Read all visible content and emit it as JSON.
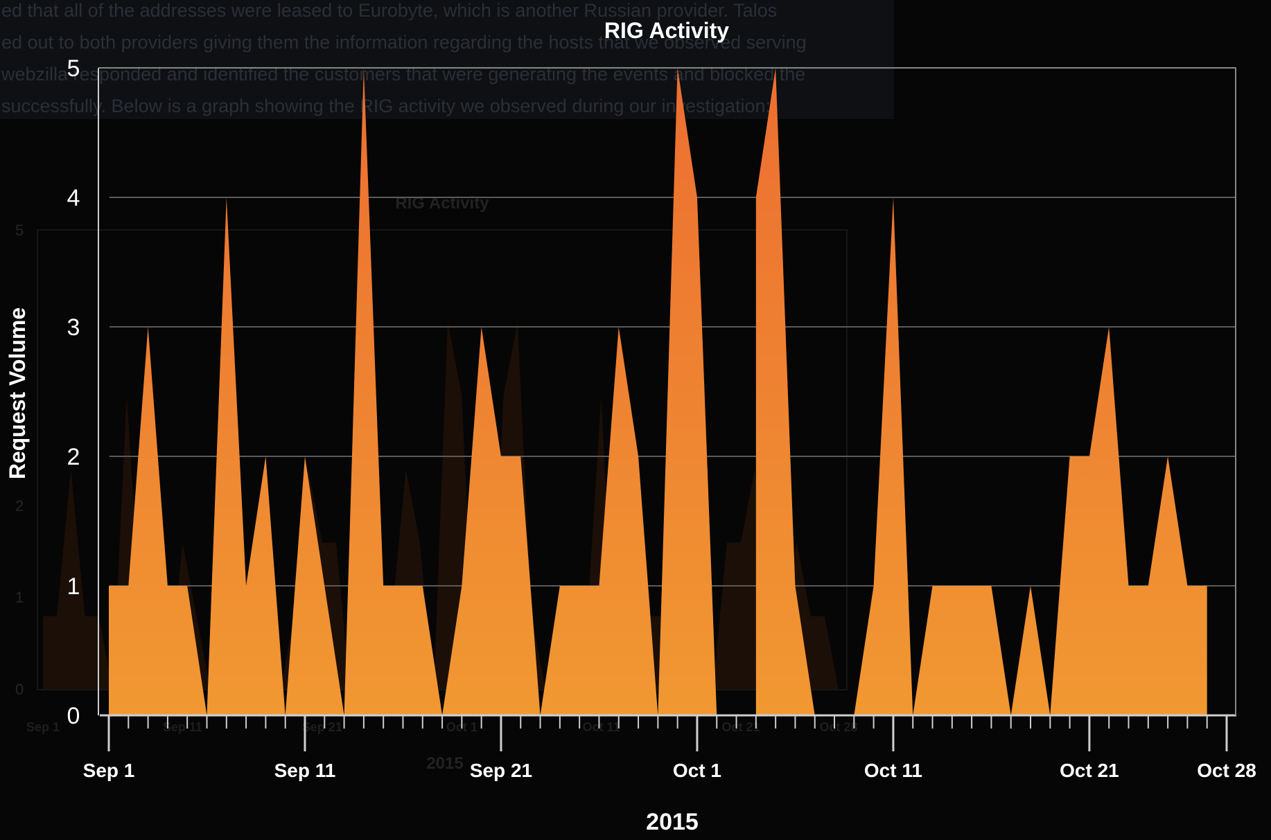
{
  "chart_data": {
    "type": "area",
    "title": "RIG Activity",
    "xlabel": "2015",
    "ylabel": "Request Volume",
    "x_start": "Sep 1",
    "x_end": "Oct 28",
    "xlim": [
      "2015-09-01",
      "2015-10-28"
    ],
    "ylim": [
      0,
      5
    ],
    "y_ticks": [
      0,
      1,
      2,
      3,
      4,
      5
    ],
    "x_ticks": [
      "Sep 1",
      "Sep 11",
      "Sep 21",
      "Oct 1",
      "Oct 11",
      "Oct 21",
      "Oct 28"
    ],
    "grid": true,
    "legend": "none",
    "colors": {
      "fill_top": "#ec6e31",
      "fill_bottom": "#f19832",
      "background": "#060606",
      "grid": "#5a5a5a",
      "axis": "#cfcfcf"
    },
    "series": [
      {
        "x": [
          "2015-09-01",
          "2015-09-02",
          "2015-09-03",
          "2015-09-04",
          "2015-09-05",
          "2015-09-06",
          "2015-09-07",
          "2015-09-08",
          "2015-09-09",
          "2015-09-10",
          "2015-09-11",
          "2015-09-12",
          "2015-09-13",
          "2015-09-14",
          "2015-09-15",
          "2015-09-16",
          "2015-09-17",
          "2015-09-18",
          "2015-09-19",
          "2015-09-20",
          "2015-09-21",
          "2015-09-22",
          "2015-09-23",
          "2015-09-24",
          "2015-09-25",
          "2015-09-26",
          "2015-09-27",
          "2015-09-28",
          "2015-09-29",
          "2015-09-30",
          "2015-10-01",
          "2015-10-02",
          "2015-10-03",
          "2015-10-04",
          "2015-10-05",
          "2015-10-06",
          "2015-10-07",
          "2015-10-08",
          "2015-10-09",
          "2015-10-10",
          "2015-10-11",
          "2015-10-12",
          "2015-10-13",
          "2015-10-14",
          "2015-10-15",
          "2015-10-16",
          "2015-10-17",
          "2015-10-18",
          "2015-10-19",
          "2015-10-20",
          "2015-10-21",
          "2015-10-22",
          "2015-10-23",
          "2015-10-24",
          "2015-10-25",
          "2015-10-26",
          "2015-10-27",
          "2015-10-28"
        ],
        "values": [
          1,
          1,
          3,
          1,
          1,
          0,
          4,
          1,
          2,
          0,
          2,
          1,
          0,
          5,
          1,
          1,
          1,
          0,
          1,
          3,
          2,
          2,
          0,
          1,
          1,
          1,
          3,
          2,
          0,
          5,
          4,
          0,
          null,
          4,
          5,
          1,
          0,
          0,
          0,
          1,
          4,
          0,
          1,
          1,
          1,
          1,
          0,
          1,
          0,
          2,
          2,
          3,
          1,
          1,
          2,
          1,
          1,
          null
        ]
      }
    ]
  },
  "bg_text": {
    "lines": [
      "ed that all of the addresses were leased to Eurobyte, which is another Russian provider. Talos",
      "ed out to both providers giving them the information regarding the hosts that we observed serving",
      "webzilla responded and identified the customers that were generating the events and blocked the",
      "successfully. Below is a graph showing the RIG activity we observed during our investigation:"
    ],
    "ghost_title": "RIG Activity",
    "ghost_xlabel": "2015",
    "ghost_yticks": [
      "5",
      "2",
      "1",
      "0"
    ],
    "ghost_xticks": [
      "Sep 1",
      "Sep 11",
      "Sep 21",
      "Oct 1",
      "Oct 11",
      "Oct 21",
      "Oct 28"
    ]
  }
}
